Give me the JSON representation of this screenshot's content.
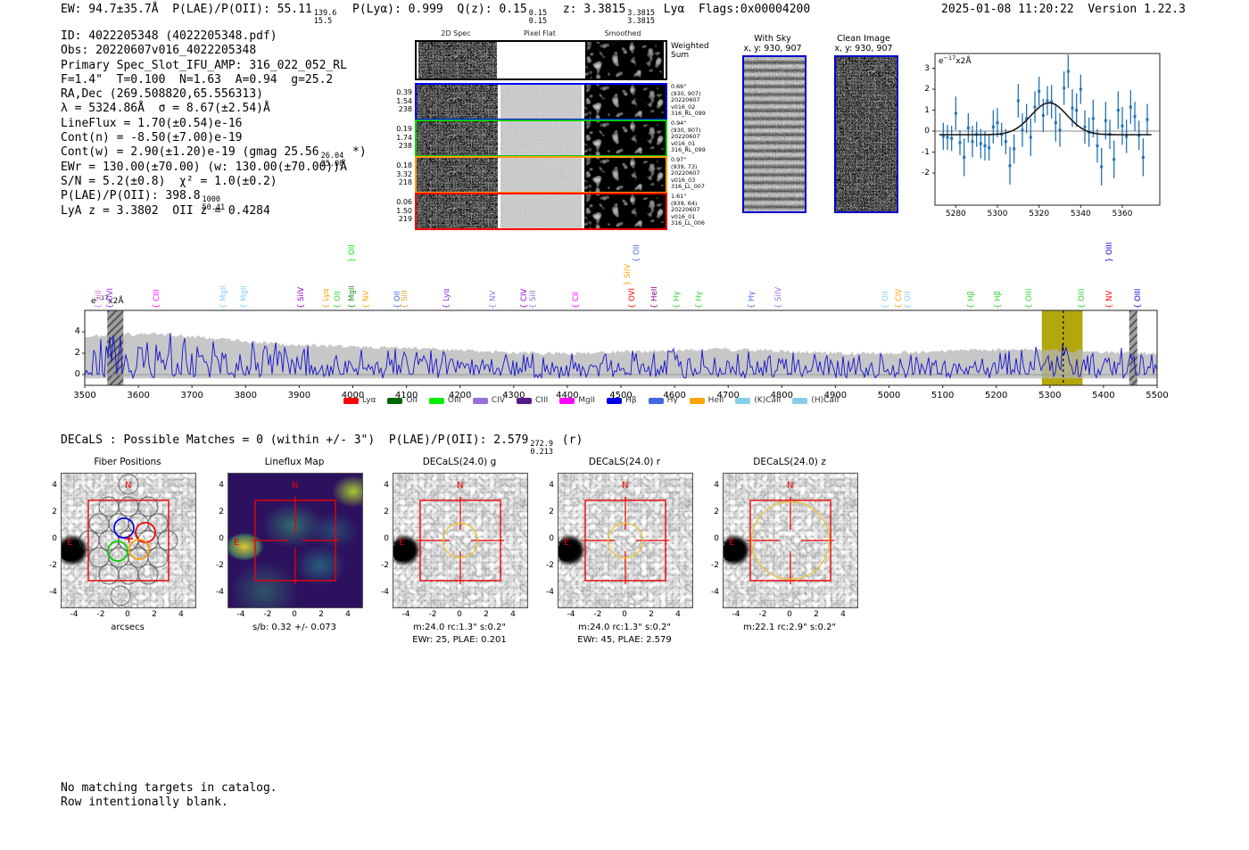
{
  "header": {
    "parts": [
      {
        "t": "EW: 94.7±35.7Å  P(LAE)/P(OII): 55.11"
      },
      {
        "sup": "139.6",
        "sub": "15.5"
      },
      {
        "t": "  P(Lyα): 0.999  Q(z): 0.15"
      },
      {
        "sup": "0.15",
        "sub": "0.15"
      },
      {
        "t": "  z: 3.3815"
      },
      {
        "sup": "3.3815",
        "sub": "3.3815"
      },
      {
        "t": " Lyα  Flags:0x00004200"
      }
    ],
    "right": "2025-01-08 11:20:22  Version 1.22.3"
  },
  "info": {
    "lines": [
      [
        {
          "t": "ID: 4022205348 (4022205348.pdf)"
        }
      ],
      [
        {
          "t": "Obs: 20220607v016_4022205348"
        }
      ],
      [
        {
          "t": "Primary Spec_Slot_IFU_AMP: 316_022_052_RL"
        }
      ],
      [
        {
          "t": "F=1.4\"  T=0.100  N=1.63  A=0.94  g=25.2"
        }
      ],
      [
        {
          "t": "RA,Dec (269.508820,65.556313)"
        }
      ],
      [
        {
          "t": "λ = 5324.86Å  σ = 8.67(±2.54)Å"
        }
      ],
      [
        {
          "t": "LineFlux = 1.70(±0.54)e-16"
        }
      ],
      [
        {
          "t": "Cont(n) = -8.50(±7.00)e-19"
        }
      ],
      [
        {
          "t": "Cont(w) = 2.90(±1.20)e-19 (gmag 25.56"
        },
        {
          "sup": "26.04",
          "sub": "25.08"
        },
        {
          "t": " *)"
        }
      ],
      [
        {
          "t": "EWr = 130.00(±70.00) (w: 130.00(±70.00))Å"
        }
      ],
      [
        {
          "t": "S/N = 5.2(±0.8)  χ² = 1.0(±0.2)"
        }
      ],
      [
        {
          "t": "P(LAE)/P(OII): 398.8"
        },
        {
          "sup": "1000",
          "sub": "50.41"
        }
      ],
      [
        {
          "t": "LyA z = 3.3802  OII z = 0.4284"
        }
      ]
    ]
  },
  "cutouts": {
    "col_headers": [
      "2D Spec",
      "Pixel Flat",
      "Smoothed"
    ],
    "weighted_sum_label": [
      "Weighted",
      "Sum"
    ],
    "rows": [
      {
        "color": "#0000ff",
        "left": [
          "0.39",
          "1.54",
          "238"
        ],
        "right": [
          "0.66\"",
          "(930, 907)",
          "20220607",
          "v016_02",
          "316_RL_099"
        ]
      },
      {
        "color": "#00cc00",
        "left": [
          "0.19",
          "1.74",
          "238"
        ],
        "right": [
          "0.94\"",
          "(930, 907)",
          "20220607",
          "v016_01",
          "316_RL_099"
        ]
      },
      {
        "color": "#ff9900",
        "left": [
          "0.18",
          "3.32",
          "218"
        ],
        "right": [
          "0.97\"",
          "(939, 73)",
          "20220607",
          "v016_03",
          "316_LL_007"
        ]
      },
      {
        "color": "#ff0000",
        "left": [
          "0.06",
          "1.50",
          "219"
        ],
        "right": [
          "1.61\"",
          "(939, 64)",
          "20220607",
          "v016_01",
          "316_LL_006"
        ]
      }
    ]
  },
  "sky_panels": {
    "with_sky": {
      "title": "With Sky",
      "subtitle": "x, y: 930, 907",
      "border": "#0000cc"
    },
    "clean": {
      "title": "Clean Image",
      "subtitle": "x, y: 930, 907",
      "border": "#0000cc"
    }
  },
  "chart_data": {
    "linefit": {
      "type": "scatter",
      "units": {
        "base": "e",
        "sup": "−17",
        "rest": "x2Å"
      },
      "xlim": [
        5270,
        5378
      ],
      "ylim": [
        -3.5,
        3.7
      ],
      "xticks": [
        5280,
        5300,
        5320,
        5340,
        5360
      ],
      "yticks": [
        -2,
        -1,
        0,
        1,
        2,
        3
      ],
      "point_color": "#2273b5",
      "fit_color": "#1a1a1a",
      "gauss": {
        "center": 5324.86,
        "sigma": 8.67,
        "amp": 1.52,
        "baseline": -0.17
      },
      "points": {
        "x": [
          5274,
          5276,
          5278,
          5280,
          5282,
          5284,
          5286,
          5288,
          5290,
          5292,
          5294,
          5296,
          5298,
          5300,
          5302,
          5304,
          5306,
          5308,
          5310,
          5312,
          5314,
          5316,
          5318,
          5320,
          5322,
          5324,
          5326,
          5328,
          5330,
          5332,
          5334,
          5336,
          5338,
          5340,
          5342,
          5344,
          5346,
          5348,
          5350,
          5352,
          5354,
          5356,
          5358,
          5360,
          5362,
          5364,
          5366,
          5368,
          5370,
          5372
        ],
        "y": [
          -0.25,
          -0.3,
          -0.35,
          0.85,
          -0.55,
          -1.25,
          0.15,
          -0.5,
          -0.15,
          -0.6,
          -0.7,
          -0.8,
          0.2,
          0.4,
          -0.15,
          -0.5,
          -1.65,
          -0.85,
          1.45,
          0.05,
          0.6,
          -0.3,
          1.15,
          1.9,
          0.75,
          1.45,
          1.4,
          0.4,
          0.05,
          2.05,
          2.85,
          1.1,
          1.0,
          2.0,
          0.2,
          -0.05,
          0.6,
          -0.7,
          -1.7,
          0.5,
          -0.15,
          -1.35,
          1.0,
          0.25,
          -0.25,
          1.15,
          0.7,
          -0.2,
          -1.25,
          0.55
        ],
        "err": [
          0.65,
          0.6,
          0.6,
          0.8,
          0.6,
          0.9,
          0.7,
          0.75,
          0.6,
          0.7,
          0.7,
          0.6,
          0.8,
          0.7,
          0.55,
          0.6,
          0.9,
          0.7,
          0.8,
          0.8,
          0.7,
          0.9,
          0.75,
          0.7,
          0.8,
          0.7,
          0.8,
          0.9,
          0.8,
          0.8,
          0.8,
          0.9,
          0.8,
          0.7,
          0.8,
          0.7,
          0.9,
          0.8,
          0.9,
          0.9,
          0.7,
          0.9,
          0.9,
          0.9,
          0.8,
          0.8,
          0.7,
          0.7,
          0.9,
          0.75
        ]
      }
    },
    "spectrum": {
      "type": "line",
      "units": {
        "base": "e",
        "sup": "−17",
        "rest": "x2Å"
      },
      "xlim": [
        3500,
        5500
      ],
      "ylim": [
        -1,
        6
      ],
      "xticks": [
        3500,
        3600,
        3700,
        3800,
        3900,
        4000,
        4100,
        4200,
        4300,
        4400,
        4500,
        4600,
        4700,
        4800,
        4900,
        5000,
        5100,
        5200,
        5300,
        5400,
        5500
      ],
      "yticks": [
        0,
        2,
        4
      ],
      "line_color": "#1414cc",
      "band_color": "#b4b4b4",
      "detection_wavelength": 5324.86,
      "highlight_band": {
        "x0": 5285,
        "x1": 5361,
        "color": "#b3a70e"
      },
      "hatch_bands": [
        {
          "x0": 3542,
          "x1": 3572
        },
        {
          "x0": 5448,
          "x1": 5463
        }
      ],
      "noise_seed": 7,
      "labels": [
        {
          "name": "SiII",
          "wl": 3542,
          "color": "#DA70D6",
          "lv": 0,
          "brace": "{"
        },
        {
          "name": "OVI",
          "wl": 3563,
          "color": "#8A2BE2",
          "lv": 0,
          "brace": "{"
        },
        {
          "name": "CIII",
          "wl": 3650,
          "color": "#FF00FF",
          "lv": 0,
          "brace": "{"
        },
        {
          "name": "MgII",
          "wl": 3775,
          "color": "#87CEFA",
          "lv": 0,
          "brace": "{"
        },
        {
          "name": "MgII",
          "wl": 3813,
          "color": "#87CEFA",
          "lv": 0,
          "brace": "{"
        },
        {
          "name": "SiIV",
          "wl": 3919,
          "color": "#9400D3",
          "lv": 0,
          "brace": "{"
        },
        {
          "name": "Lyα",
          "wl": 3966,
          "color": "#FFA500",
          "lv": 0,
          "brace": "{"
        },
        {
          "name": "OII",
          "wl": 3988,
          "color": "#32CD32",
          "lv": 0,
          "brace": "{"
        },
        {
          "name": "MgII",
          "wl": 4014,
          "color": "#228B22",
          "lv": 0,
          "brace": "{"
        },
        {
          "name": "OII",
          "wl": 4014,
          "color": "#00EE00",
          "lv": 2,
          "brace": "}"
        },
        {
          "name": "NV",
          "wl": 4041,
          "color": "#FFA500",
          "lv": 0,
          "brace": "{"
        },
        {
          "name": "OII",
          "wl": 4099,
          "color": "#4169E1",
          "lv": 0,
          "brace": "{"
        },
        {
          "name": "SiII",
          "wl": 4113,
          "color": "#DAA520",
          "lv": 0,
          "brace": "{"
        },
        {
          "name": "Lyα",
          "wl": 4190,
          "color": "#8A2BE2",
          "lv": 0,
          "brace": "{"
        },
        {
          "name": "NV",
          "wl": 4277,
          "color": "#9370DB",
          "lv": 0,
          "brace": "{"
        },
        {
          "name": "CIV",
          "wl": 4335,
          "color": "#9400D3",
          "lv": 0,
          "brace": "{"
        },
        {
          "name": "SiII",
          "wl": 4352,
          "color": "#9370DB",
          "lv": 0,
          "brace": "{"
        },
        {
          "name": "CII",
          "wl": 4432,
          "color": "#FF00FF",
          "lv": 0,
          "brace": "{"
        },
        {
          "name": "SiIV",
          "wl": 4528,
          "color": "#FFA500",
          "lv": 1,
          "brace": "}"
        },
        {
          "name": "OII",
          "wl": 4545,
          "color": "#4169E1",
          "lv": 2,
          "brace": "{"
        },
        {
          "name": "OVI",
          "wl": 4537,
          "color": "#FF0000",
          "lv": 0,
          "brace": "{"
        },
        {
          "name": "HeII",
          "wl": 4578,
          "color": "#8B008B",
          "lv": 0,
          "brace": "{"
        },
        {
          "name": "Hγ",
          "wl": 4620,
          "color": "#32CD32",
          "lv": 0,
          "brace": "{"
        },
        {
          "name": "Hγ",
          "wl": 4661,
          "color": "#32CD32",
          "lv": 0,
          "brace": "{"
        },
        {
          "name": "Hγ",
          "wl": 4759,
          "color": "#4169E1",
          "lv": 0,
          "brace": "{"
        },
        {
          "name": "SiIV",
          "wl": 4809,
          "color": "#9370DB",
          "lv": 0,
          "brace": "{"
        },
        {
          "name": "OII",
          "wl": 5009,
          "color": "#87CEEB",
          "lv": 0,
          "brace": "{"
        },
        {
          "name": "CIV",
          "wl": 5034,
          "color": "#FFA500",
          "lv": 0,
          "brace": "{"
        },
        {
          "name": "OII",
          "wl": 5051,
          "color": "#87CEEB",
          "lv": 0,
          "brace": "{"
        },
        {
          "name": "Hβ",
          "wl": 5169,
          "color": "#32CD32",
          "lv": 0,
          "brace": "{"
        },
        {
          "name": "Hβ",
          "wl": 5219,
          "color": "#32CD32",
          "lv": 0,
          "brace": "{"
        },
        {
          "name": "OIII",
          "wl": 5277,
          "color": "#32CD32",
          "lv": 0,
          "brace": "{"
        },
        {
          "name": "OIII",
          "wl": 5375,
          "color": "#32CD32",
          "lv": 0,
          "brace": "{"
        },
        {
          "name": "NV",
          "wl": 5427,
          "color": "#FF0000",
          "lv": 0,
          "brace": "{"
        },
        {
          "name": "OIII",
          "wl": 5427,
          "color": "#0000CD",
          "lv": 2,
          "brace": "}"
        },
        {
          "name": "OIII",
          "wl": 5480,
          "color": "#0000CD",
          "lv": 0,
          "brace": "{"
        }
      ],
      "legend": [
        {
          "label": "Lyα",
          "color": "#FF0000"
        },
        {
          "label": "OII",
          "color": "#006400"
        },
        {
          "label": "OIII",
          "color": "#00EE00"
        },
        {
          "label": "CIV",
          "color": "#9370DB"
        },
        {
          "label": "CIII",
          "color": "#551A8B"
        },
        {
          "label": "MgII",
          "color": "#FF00FF"
        },
        {
          "label": "Hβ",
          "color": "#0000EE"
        },
        {
          "label": "Hγ",
          "color": "#4169E1"
        },
        {
          "label": "HeII",
          "color": "#FFA500"
        },
        {
          "label": "(K)CaII",
          "color": "#87CEEB"
        },
        {
          "label": "(H)CaII",
          "color": "#87CEEB"
        }
      ]
    }
  },
  "decals": {
    "header_parts": [
      {
        "t": "DECaLS : Possible Matches = 0 (within +/- 3\")  P(LAE)/P(OII): 2.579"
      },
      {
        "sup": "272.9",
        "sub": "0.213"
      },
      {
        "t": " (r)"
      }
    ],
    "ticks": [
      -4,
      -2,
      0,
      2,
      4
    ],
    "compass": {
      "n": "N",
      "e": "E"
    },
    "box_color": "#ee0000",
    "aperture_color": "#e8c33c",
    "panels": [
      {
        "kind": "fiber",
        "title": "Fiber Positions",
        "caption1": "arcsecs",
        "caption2": ""
      },
      {
        "kind": "map",
        "title": "Lineflux Map",
        "caption1": "s/b: 0.32 +/- 0.073",
        "caption2": ""
      },
      {
        "kind": "img",
        "title": "DECaLS(24.0) g",
        "caption1": "m:24.0 rc:1.3\"  s:0.2\"",
        "caption2": "EWr: 25, PLAE: 0.201",
        "circle_r": 1.3
      },
      {
        "kind": "img",
        "title": "DECaLS(24.0) r",
        "caption1": "m:24.0 rc:1.3\"  s:0.2\"",
        "caption2": "EWr: 45, PLAE: 2.579",
        "circle_r": 1.3
      },
      {
        "kind": "img",
        "title": "DECaLS(24.0) z",
        "caption1": "m:22.1 rc:2.9\"  s:0.2\"",
        "caption2": "",
        "circle_r": 2.9
      }
    ]
  },
  "footer": [
    "No matching targets in catalog.",
    "Row intentionally blank."
  ]
}
